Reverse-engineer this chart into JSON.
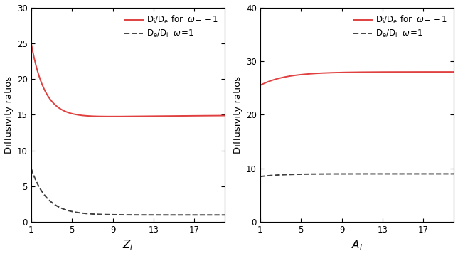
{
  "left_xlabel": "$Z_i$",
  "right_xlabel": "$A_i$",
  "ylabel": "Diffusivity ratios",
  "left_ylim": [
    0,
    30
  ],
  "right_ylim": [
    0,
    40
  ],
  "left_yticks": [
    0,
    5,
    10,
    15,
    20,
    25,
    30
  ],
  "right_yticks": [
    0,
    10,
    20,
    30,
    40
  ],
  "left_xticks": [
    1,
    5,
    9,
    13,
    17
  ],
  "right_xticks": [
    1,
    5,
    9,
    13,
    17
  ],
  "left_xlim": [
    1,
    20
  ],
  "right_xlim": [
    1,
    20
  ],
  "legend_label_red": "$\\mathrm{D_i/D_e}$ for  $\\omega\\!=\\!-1$",
  "legend_label_black": "$\\mathrm{D_e/D_i}$  $\\omega\\!=\\!1$",
  "legend_label_red_right": "$\\mathrm{D_i/D_e}$ for  $\\omega\\!=\\!-1$",
  "legend_label_black_right": "$\\mathrm{D_e/D_i}$  $\\omega\\!=\\!1$",
  "red_color": "#e04040",
  "black_color": "#404040",
  "bg_color": "#ffffff"
}
